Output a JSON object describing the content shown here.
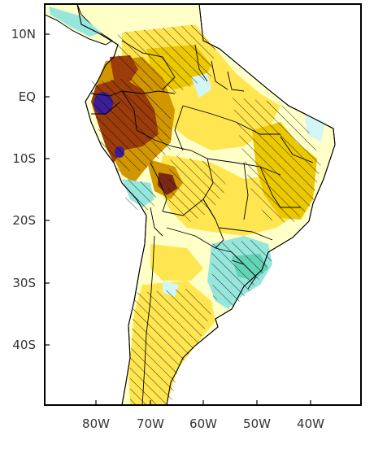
{
  "map": {
    "lat_labels": [
      "10N",
      "EQ",
      "10S",
      "20S",
      "30S",
      "40S"
    ],
    "lon_labels": [
      "80W",
      "70W",
      "60W",
      "50W",
      "40W"
    ],
    "colors": {
      "ocean": "#ffffff",
      "light_yellow": "#ffffc8",
      "yellow": "#ffe650",
      "gold": "#ebc800",
      "orange": "#d29600",
      "brown": "#9b3c0a",
      "dark_brown": "#782814",
      "purple": "#3c1e96",
      "light_cyan": "#d2f5f5",
      "cyan": "#96e6dc",
      "teal": "#64d2b4",
      "border": "#000000"
    }
  }
}
